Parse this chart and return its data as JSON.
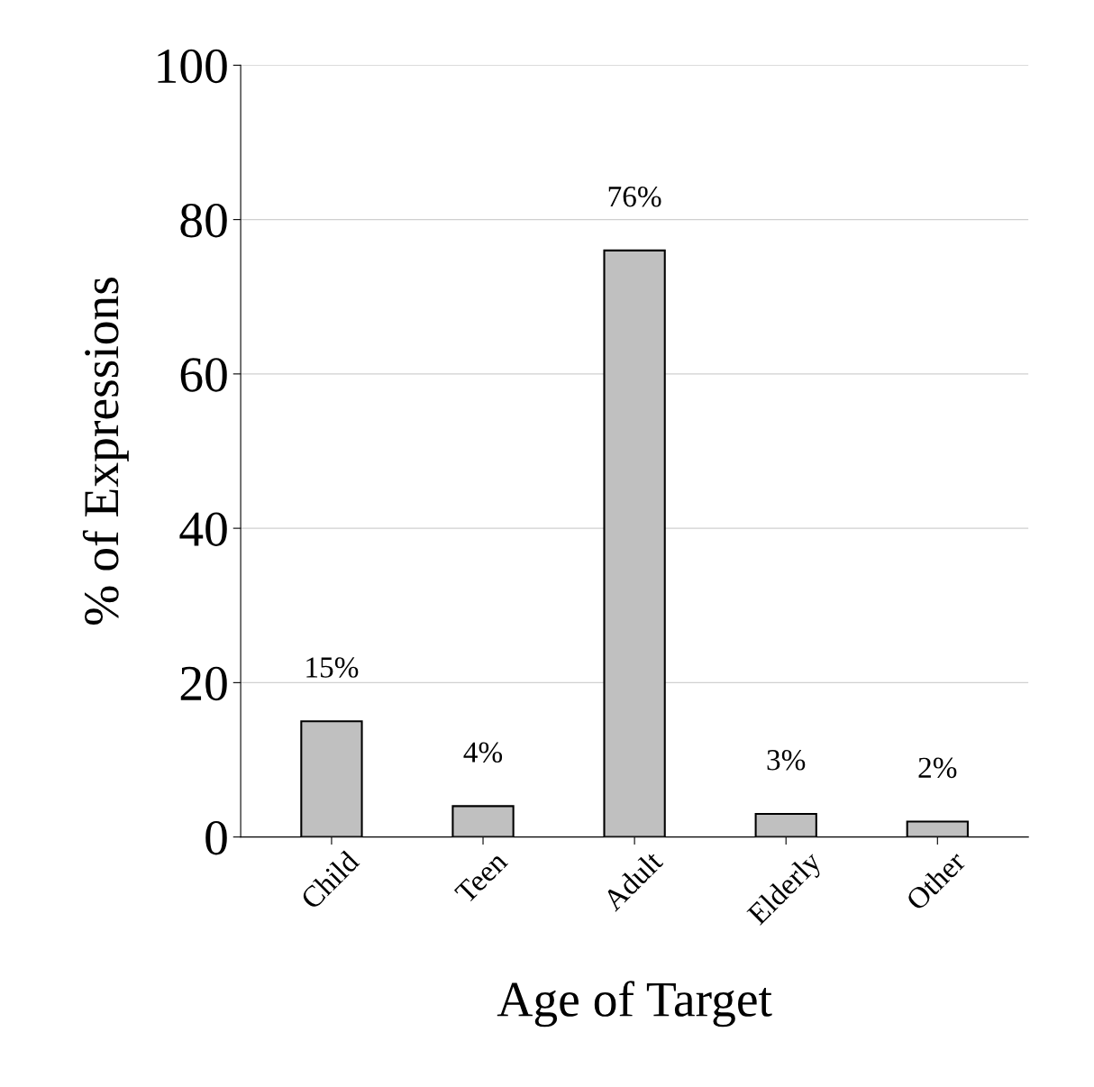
{
  "chart_data": {
    "type": "bar",
    "xlabel": "Age of Target",
    "ylabel": "% of Expressions",
    "categories": [
      "Child",
      "Teen",
      "Adult",
      "Elderly",
      "Other"
    ],
    "values": [
      15,
      4,
      76,
      3,
      2
    ],
    "value_labels": [
      "15%",
      "4%",
      "76%",
      "3%",
      "2%"
    ],
    "color": "#c0c0c0",
    "ylim": [
      0,
      100
    ],
    "yticks": [
      0,
      20,
      40,
      60,
      80,
      100
    ],
    "grid": "y"
  }
}
